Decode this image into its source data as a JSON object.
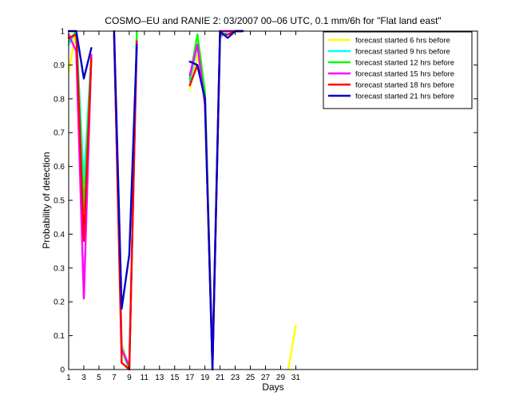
{
  "chart_data": {
    "type": "line",
    "title": "COSMO–EU and RANIE 2: 03/2007 00–06 UTC, 0.1 mm/6h for \"Flat land east\"",
    "xlabel": "Days",
    "ylabel": "Probability of detection",
    "xlim": [
      1,
      55
    ],
    "ylim": [
      0,
      1
    ],
    "x_ticks": [
      1,
      3,
      5,
      7,
      9,
      11,
      13,
      15,
      17,
      19,
      21,
      23,
      25,
      27,
      29,
      31
    ],
    "y_ticks": [
      0,
      0.1,
      0.2,
      0.3,
      0.4,
      0.5,
      0.6,
      0.7,
      0.8,
      0.9,
      1
    ],
    "grid": false,
    "legend_position": "top-right",
    "series": [
      {
        "name": "forecast started 6 hrs before",
        "color": "#ffff00",
        "points": [
          [
            1,
            0.88
          ],
          [
            2,
            1.0
          ],
          [
            3,
            0.5
          ],
          [
            4,
            0.92
          ],
          null,
          [
            7,
            0.99
          ],
          [
            8,
            0.08
          ],
          [
            9,
            0.0
          ],
          [
            10,
            0.98
          ],
          null,
          [
            17,
            0.83
          ],
          [
            18,
            0.93
          ],
          [
            19,
            0.82
          ],
          [
            20,
            0.02
          ],
          [
            21,
            1.0
          ],
          [
            22,
            1.0
          ],
          [
            23,
            1.0
          ],
          [
            24,
            1.0
          ],
          null,
          [
            30,
            0.0
          ],
          [
            31,
            0.13
          ]
        ]
      },
      {
        "name": "forecast started 9 hrs before",
        "color": "#00ffff",
        "points": [
          [
            1,
            0.96
          ],
          [
            2,
            1.0
          ],
          [
            3,
            0.55
          ],
          [
            4,
            0.93
          ],
          null,
          [
            7,
            0.99
          ],
          [
            8,
            0.07
          ],
          [
            9,
            0.0
          ],
          [
            10,
            0.99
          ],
          null,
          [
            17,
            0.85
          ],
          [
            18,
            0.96
          ],
          [
            19,
            0.8
          ],
          [
            20,
            0.02
          ],
          [
            21,
            0.98
          ],
          [
            22,
            1.0
          ],
          [
            23,
            1.0
          ],
          [
            24,
            1.0
          ]
        ]
      },
      {
        "name": "forecast started 12 hrs before",
        "color": "#00ff00",
        "points": [
          [
            1,
            0.97
          ],
          [
            2,
            1.0
          ],
          [
            3,
            0.47
          ],
          [
            4,
            0.93
          ],
          null,
          [
            7,
            0.99
          ],
          [
            8,
            0.06
          ],
          [
            9,
            0.0
          ],
          [
            10,
            1.0
          ],
          null,
          [
            17,
            0.86
          ],
          [
            18,
            0.99
          ],
          [
            19,
            0.82
          ],
          [
            20,
            0.02
          ],
          [
            21,
            1.0
          ],
          [
            22,
            1.0
          ],
          [
            23,
            1.0
          ],
          [
            24,
            1.0
          ]
        ]
      },
      {
        "name": "forecast started 15 hrs before",
        "color": "#ff00ff",
        "points": [
          [
            1,
            0.99
          ],
          [
            2,
            0.94
          ],
          [
            3,
            0.21
          ],
          [
            4,
            0.93
          ],
          null,
          [
            7,
            0.99
          ],
          [
            8,
            0.06
          ],
          [
            9,
            0.01
          ],
          [
            10,
            0.97
          ],
          null,
          [
            17,
            0.87
          ],
          [
            18,
            0.96
          ],
          [
            19,
            0.78
          ],
          [
            20,
            0.02
          ],
          [
            21,
            1.0
          ],
          [
            22,
            1.0
          ],
          [
            23,
            1.0
          ],
          [
            24,
            1.0
          ]
        ]
      },
      {
        "name": "forecast started 18 hrs before",
        "color": "#ff0000",
        "points": [
          [
            1,
            0.98
          ],
          [
            2,
            0.99
          ],
          [
            3,
            0.38
          ],
          [
            4,
            0.92
          ],
          null,
          [
            7,
            0.99
          ],
          [
            8,
            0.02
          ],
          [
            9,
            0.0
          ],
          [
            10,
            0.97
          ],
          null,
          [
            17,
            0.84
          ],
          [
            18,
            0.9
          ],
          [
            19,
            0.8
          ],
          [
            20,
            0.0
          ],
          [
            21,
            0.99
          ],
          [
            22,
            0.99
          ],
          [
            23,
            1.0
          ],
          [
            24,
            1.0
          ]
        ]
      },
      {
        "name": "forecast started 21 hrs before",
        "color": "#0000cc",
        "points": [
          [
            1,
            1.0
          ],
          [
            2,
            1.0
          ],
          [
            3,
            0.86
          ],
          [
            4,
            0.95
          ],
          null,
          [
            7,
            1.0
          ],
          [
            8,
            0.18
          ],
          [
            9,
            0.34
          ],
          [
            10,
            0.96
          ],
          null,
          [
            17,
            0.91
          ],
          [
            18,
            0.9
          ],
          [
            19,
            0.8
          ],
          [
            20,
            0.0
          ],
          [
            21,
            1.0
          ],
          [
            22,
            0.98
          ],
          [
            23,
            1.0
          ],
          [
            24,
            1.0
          ]
        ]
      }
    ]
  }
}
